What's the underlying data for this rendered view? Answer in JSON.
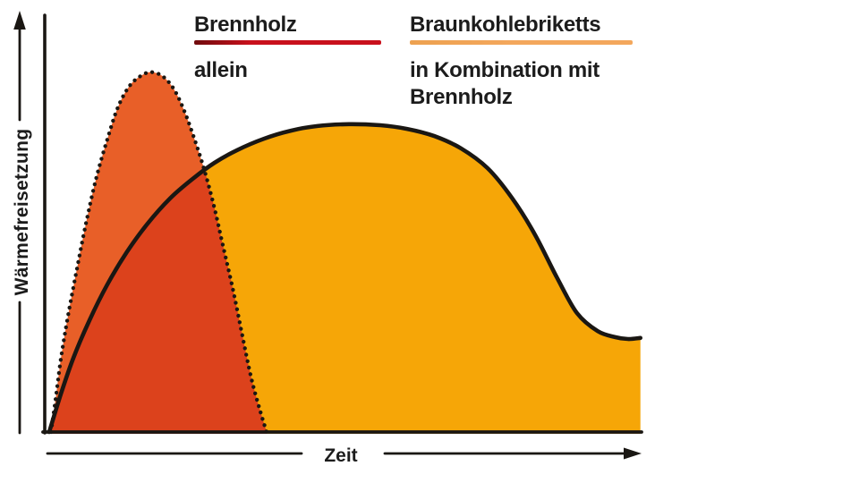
{
  "figure": {
    "background": "#ffffff"
  },
  "axes": {
    "y_label": "Wärmefreisetzung",
    "x_label": "Zeit",
    "line_color": "#1a1713",
    "has_numeric_ticks": false
  },
  "legend": {
    "brennholz": {
      "title": "Brennholz",
      "subtitle": "allein",
      "underline_color": "#c9101c",
      "underline_edge_color": "#6f0b0d"
    },
    "braunkohle": {
      "title": "Braunkohlebriketts",
      "subtitle": "in Kombination mit\nBrennholz",
      "underline_color": "#f3a75c",
      "underline_edge_color": "#eda150"
    }
  },
  "chart_data": {
    "type": "area",
    "title": "",
    "xlabel": "Zeit",
    "ylabel": "Wärmefreisetzung",
    "grid": false,
    "legend_position": "top",
    "axis_style": "qualitative arrows, no numeric ticks",
    "ylim_normalized": [
      0,
      1
    ],
    "xlim_normalized": [
      0,
      1
    ],
    "series": [
      {
        "name": "Brennholz allein",
        "outline": "dotted",
        "outline_color": "#1a1713",
        "fill": "#e85f28",
        "overlap_fill": "#dc421c",
        "shape_note": "tall narrow early peak",
        "points_normalized": [
          [
            0.003,
            0.0
          ],
          [
            0.011,
            0.094
          ],
          [
            0.02,
            0.206
          ],
          [
            0.032,
            0.325
          ],
          [
            0.047,
            0.454
          ],
          [
            0.062,
            0.578
          ],
          [
            0.079,
            0.702
          ],
          [
            0.097,
            0.806
          ],
          [
            0.116,
            0.901
          ],
          [
            0.137,
            0.963
          ],
          [
            0.16,
            0.993
          ],
          [
            0.175,
            0.998
          ],
          [
            0.193,
            0.985
          ],
          [
            0.211,
            0.95
          ],
          [
            0.228,
            0.891
          ],
          [
            0.245,
            0.814
          ],
          [
            0.261,
            0.732
          ],
          [
            0.278,
            0.628
          ],
          [
            0.293,
            0.519
          ],
          [
            0.31,
            0.397
          ],
          [
            0.326,
            0.268
          ],
          [
            0.341,
            0.151
          ],
          [
            0.355,
            0.065
          ],
          [
            0.367,
            0.0
          ]
        ]
      },
      {
        "name": "Braunkohlebriketts in Kombination mit Brennholz",
        "outline": "solid",
        "outline_color": "#1a1713",
        "fill": "#f6a607",
        "shape_note": "broad long-lasting plateau with slow decay to a shelf",
        "points_normalized": [
          [
            0.0,
            0.0
          ],
          [
            0.02,
            0.107
          ],
          [
            0.041,
            0.206
          ],
          [
            0.068,
            0.31
          ],
          [
            0.098,
            0.409
          ],
          [
            0.131,
            0.499
          ],
          [
            0.166,
            0.578
          ],
          [
            0.204,
            0.648
          ],
          [
            0.242,
            0.702
          ],
          [
            0.279,
            0.747
          ],
          [
            0.317,
            0.782
          ],
          [
            0.363,
            0.814
          ],
          [
            0.408,
            0.836
          ],
          [
            0.453,
            0.849
          ],
          [
            0.506,
            0.854
          ],
          [
            0.559,
            0.851
          ],
          [
            0.604,
            0.841
          ],
          [
            0.65,
            0.821
          ],
          [
            0.695,
            0.787
          ],
          [
            0.74,
            0.732
          ],
          [
            0.781,
            0.65
          ],
          [
            0.82,
            0.548
          ],
          [
            0.857,
            0.429
          ],
          [
            0.891,
            0.33
          ],
          [
            0.926,
            0.28
          ],
          [
            0.956,
            0.263
          ],
          [
            0.977,
            0.258
          ],
          [
            0.998,
            0.261
          ]
        ]
      }
    ]
  }
}
